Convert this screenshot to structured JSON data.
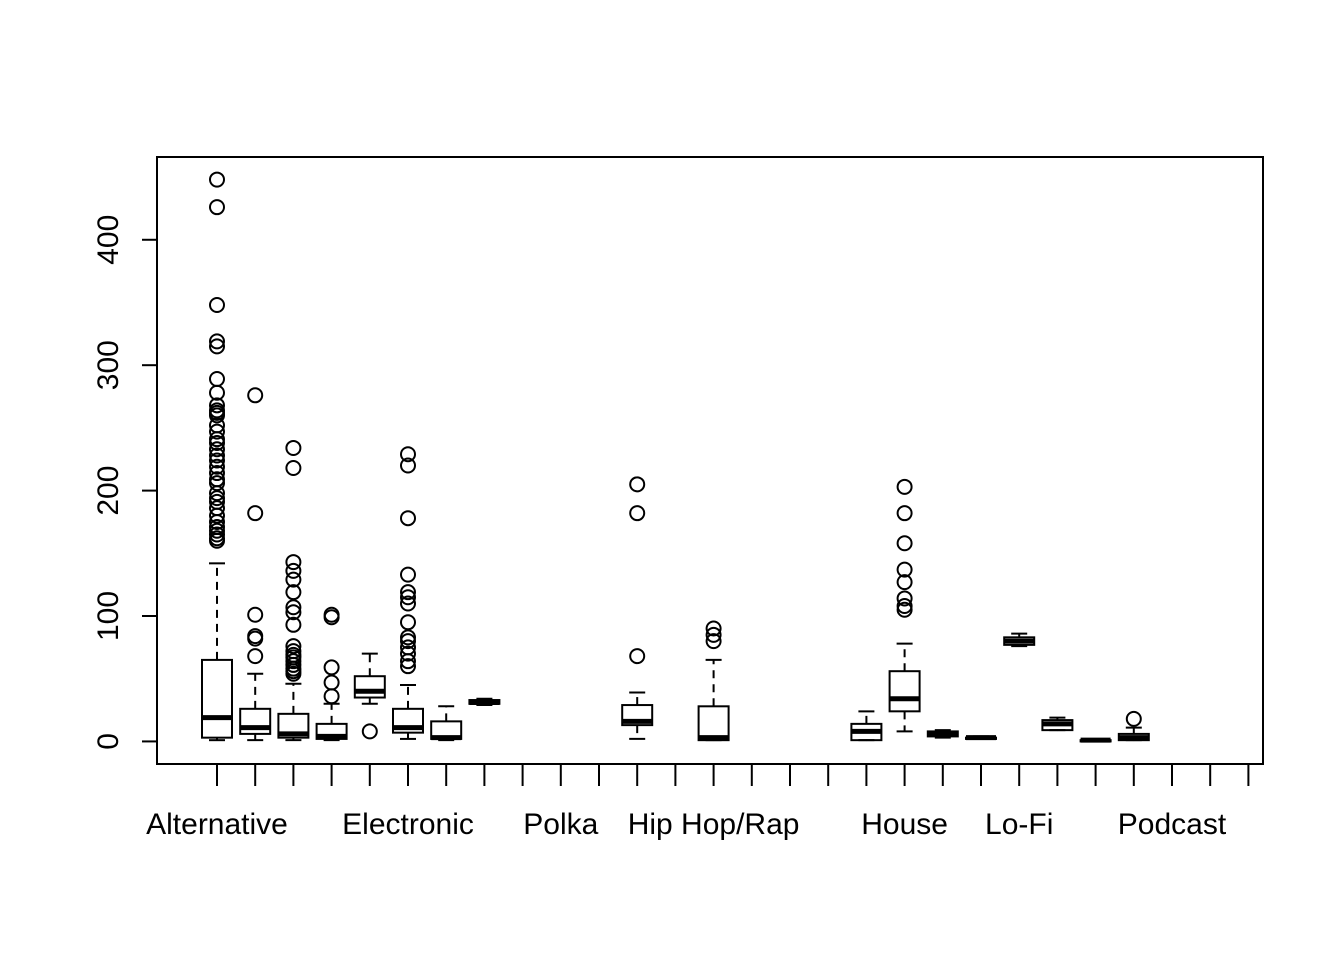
{
  "chart_data": {
    "type": "boxplot",
    "title": "",
    "xlabel": "",
    "ylabel": "",
    "ylim": [
      -18,
      466
    ],
    "y_ticks": [
      0,
      100,
      200,
      300,
      400
    ],
    "categories": [
      "Alternative",
      "",
      "",
      "",
      "",
      "Electronic",
      "",
      "",
      "",
      "Polka",
      "",
      "",
      "",
      "Hip Hop/Rap",
      "",
      "",
      "",
      "",
      "House",
      "",
      "",
      "",
      "Lo-Fi",
      "",
      "",
      "",
      "Podcast",
      ""
    ],
    "x_tick_labels": [
      {
        "position": 1,
        "label": "Alternative"
      },
      {
        "position": 6,
        "label": "Electronic"
      },
      {
        "position": 10,
        "label": "Polka"
      },
      {
        "position": 14,
        "label": "Hip Hop/Rap"
      },
      {
        "position": 19,
        "label": "House"
      },
      {
        "position": 22,
        "label": "Lo-Fi"
      },
      {
        "position": 26,
        "label": "Podcast"
      }
    ],
    "boxes": [
      {
        "position": 1,
        "min": 1,
        "q1": 3,
        "median": 19,
        "q3": 65,
        "max": 142,
        "outliers": [
          448,
          426,
          348,
          319,
          315,
          289,
          278,
          268,
          264,
          262,
          260,
          252,
          247,
          241,
          238,
          233,
          228,
          224,
          219,
          214,
          209,
          206,
          198,
          194,
          191,
          186,
          180,
          175,
          171,
          168,
          165,
          162,
          160
        ]
      },
      {
        "position": 2,
        "min": 1,
        "q1": 6,
        "median": 11,
        "q3": 26,
        "max": 54,
        "outliers": [
          276,
          182,
          101,
          84,
          82,
          68
        ]
      },
      {
        "position": 3,
        "min": 1,
        "q1": 3,
        "median": 6,
        "q3": 22,
        "max": 46,
        "outliers": [
          234,
          218,
          143,
          136,
          129,
          119,
          107,
          103,
          93,
          76,
          72,
          69,
          67,
          64,
          61,
          58,
          56,
          54
        ]
      },
      {
        "position": 4,
        "min": 1,
        "q1": 2,
        "median": 4,
        "q3": 14,
        "max": 30,
        "outliers": [
          101,
          99,
          59,
          47,
          36
        ]
      },
      {
        "position": 5,
        "min": 30,
        "q1": 35,
        "median": 40,
        "q3": 52,
        "max": 70,
        "outliers": [
          8
        ]
      },
      {
        "position": 6,
        "min": 2,
        "q1": 7,
        "median": 11,
        "q3": 26,
        "max": 45,
        "outliers": [
          229,
          220,
          178,
          133,
          119,
          115,
          110,
          95,
          83,
          80,
          75,
          70,
          64,
          60
        ]
      },
      {
        "position": 7,
        "min": 1,
        "q1": 2,
        "median": 3,
        "q3": 16,
        "max": 28,
        "outliers": []
      },
      {
        "position": 8,
        "min": 29,
        "q1": 30,
        "median": 31,
        "q3": 33,
        "max": 34,
        "outliers": []
      },
      {
        "position": 12,
        "min": 2,
        "q1": 13,
        "median": 16,
        "q3": 29,
        "max": 39,
        "outliers": [
          205,
          182,
          68
        ]
      },
      {
        "position": 14,
        "min": 1,
        "q1": 1,
        "median": 3,
        "q3": 28,
        "max": 65,
        "outliers": [
          90,
          85,
          80
        ]
      },
      {
        "position": 18,
        "min": 1,
        "q1": 1,
        "median": 8,
        "q3": 14,
        "max": 24,
        "outliers": []
      },
      {
        "position": 19,
        "min": 8,
        "q1": 24,
        "median": 34,
        "q3": 56,
        "max": 78,
        "outliers": [
          203,
          182,
          158,
          137,
          127,
          114,
          108,
          105
        ]
      },
      {
        "position": 20,
        "min": 3,
        "q1": 4,
        "median": 6,
        "q3": 8,
        "max": 9,
        "outliers": []
      },
      {
        "position": 21,
        "min": 2,
        "q1": 2,
        "median": 3,
        "q3": 3,
        "max": 4,
        "outliers": []
      },
      {
        "position": 22,
        "min": 76,
        "q1": 77,
        "median": 80,
        "q3": 83,
        "max": 86,
        "outliers": []
      },
      {
        "position": 23,
        "min": 9,
        "q1": 9,
        "median": 14,
        "q3": 17,
        "max": 19,
        "outliers": []
      },
      {
        "position": 24,
        "min": 0,
        "q1": 0,
        "median": 1,
        "q3": 1,
        "max": 1,
        "outliers": []
      },
      {
        "position": 25,
        "min": 1,
        "q1": 1,
        "median": 3,
        "q3": 6,
        "max": 11,
        "outliers": [
          18
        ]
      }
    ],
    "grid": false,
    "legend": "none"
  }
}
